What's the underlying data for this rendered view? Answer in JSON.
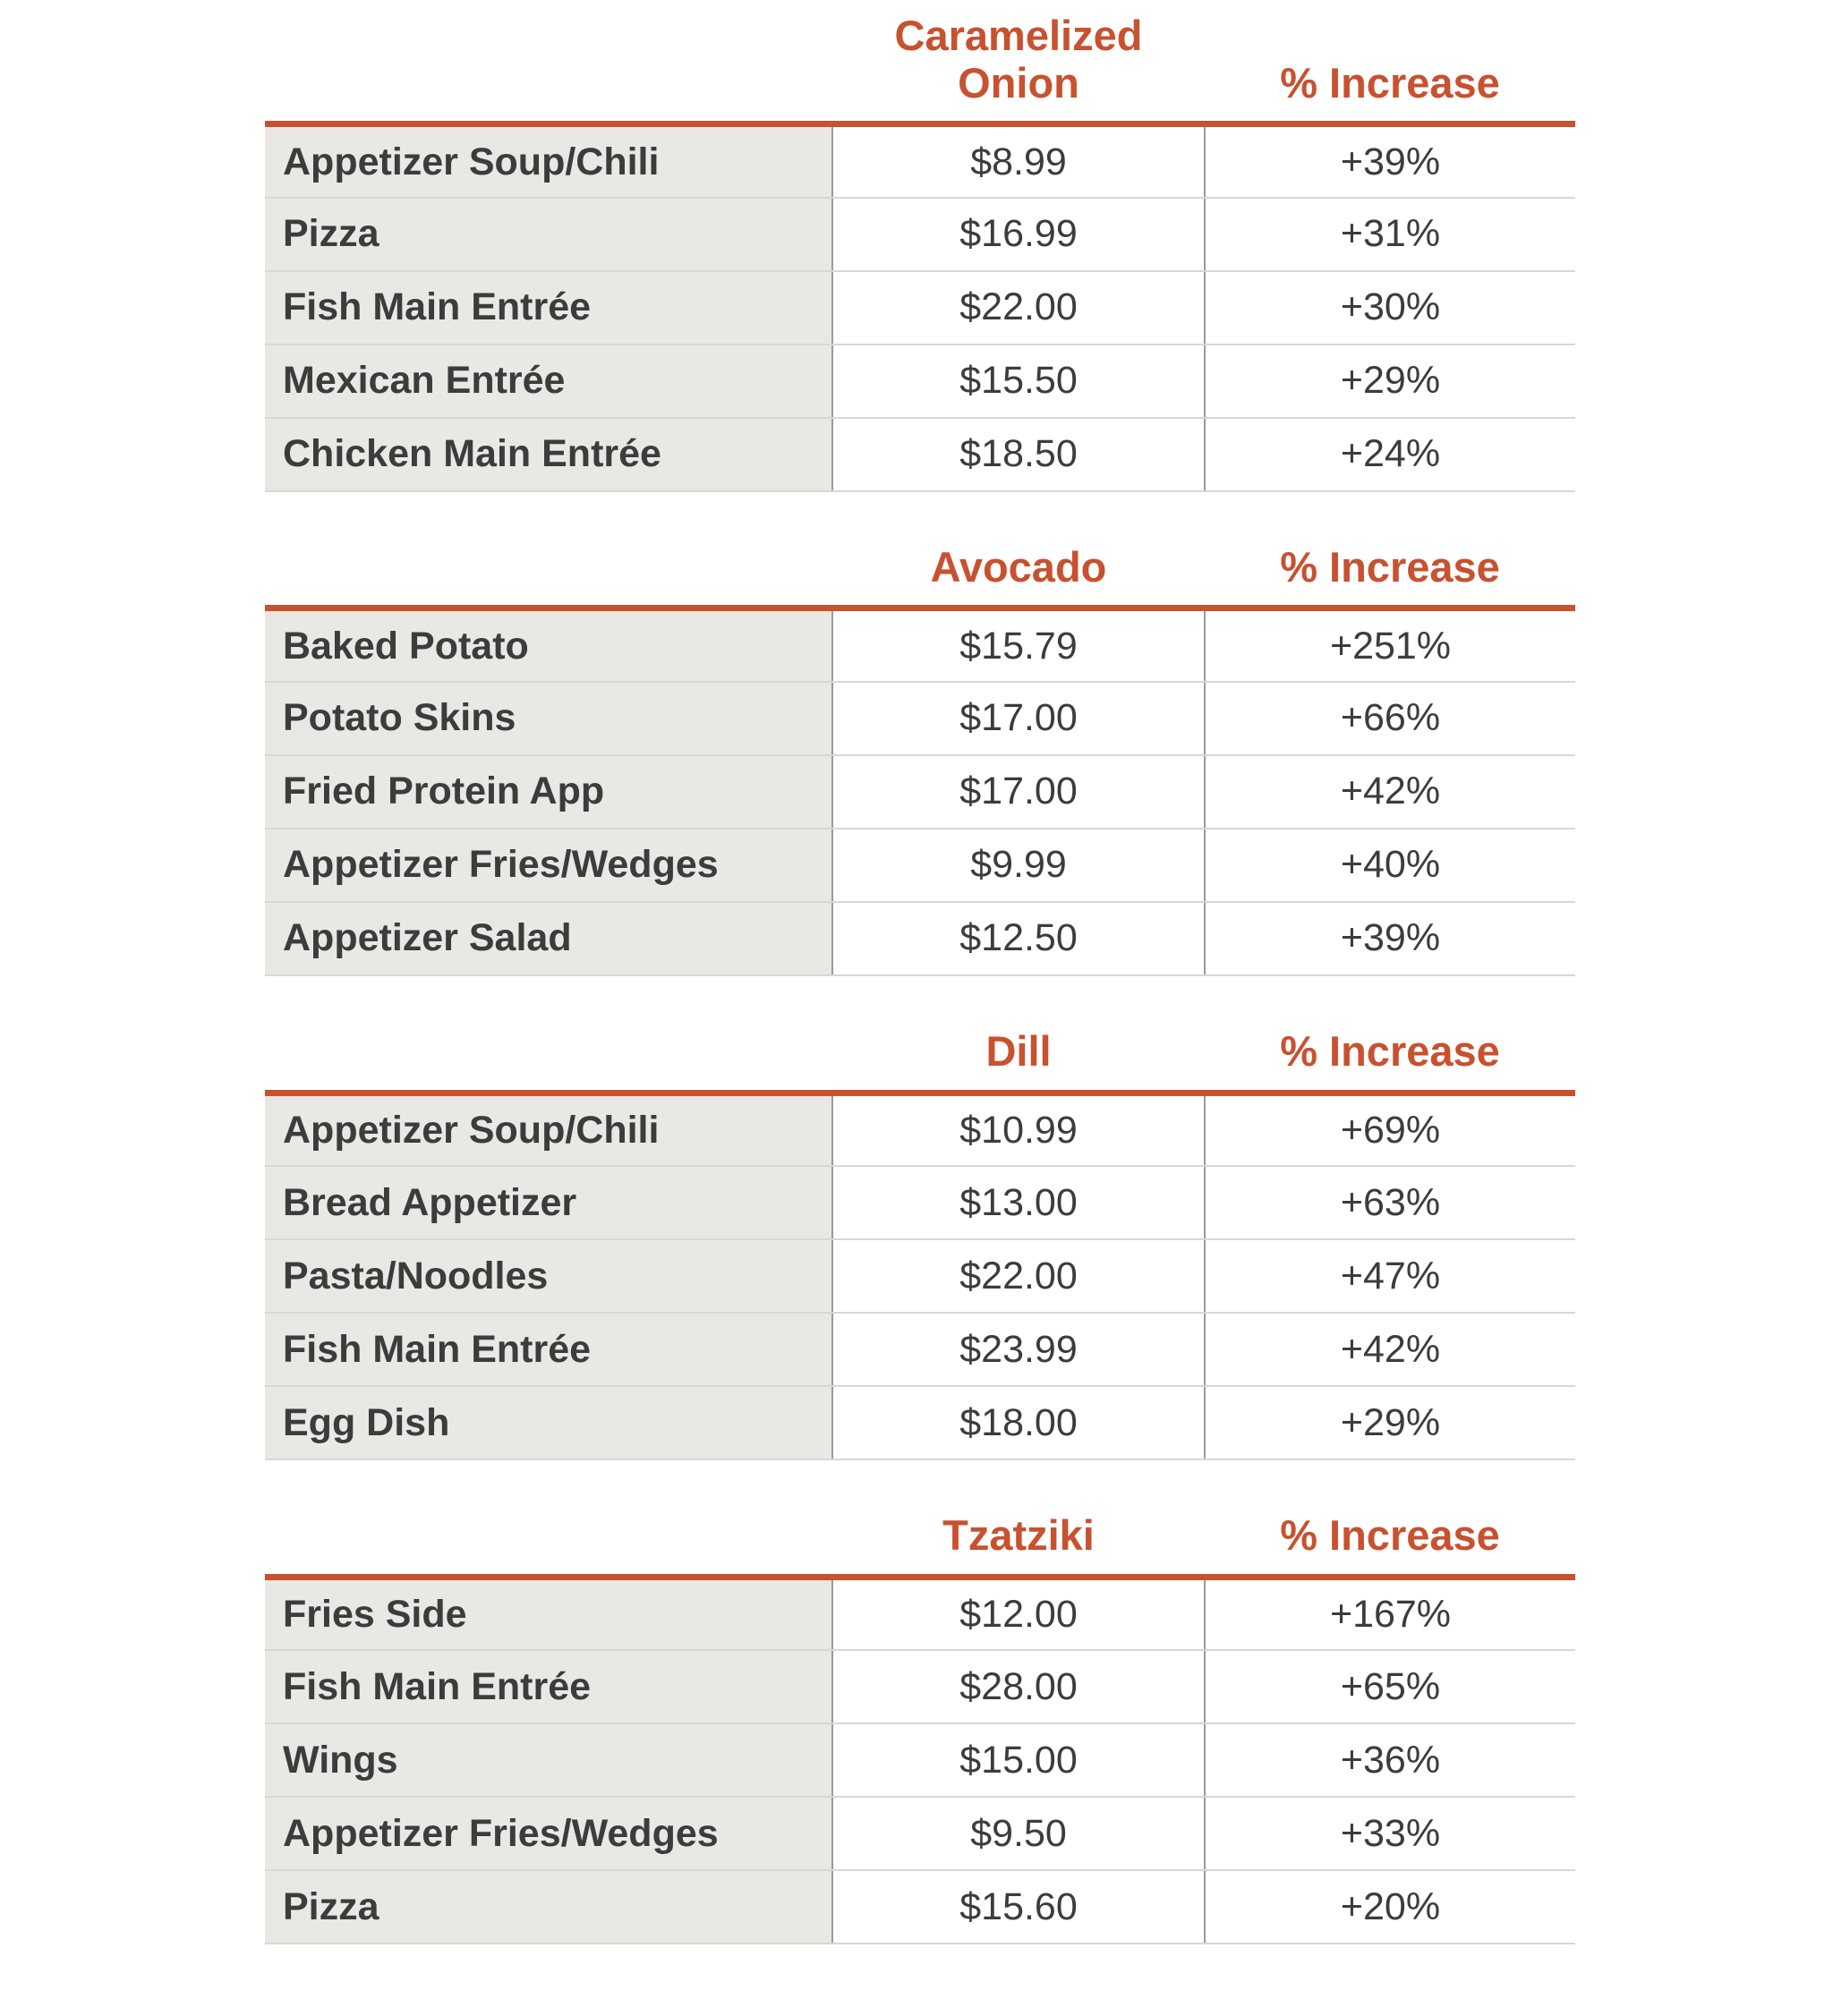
{
  "colors": {
    "accent": "#c8512f",
    "item_row_background": "#e9e8e5",
    "text": "#3c3c3c",
    "row_divider": "#d9d7d3",
    "column_divider": "#9b9b9b"
  },
  "tables": [
    {
      "title": "Caramelized Onion",
      "increase_label": "% Increase",
      "rows": [
        {
          "item": "Appetizer Soup/Chili",
          "price": "$8.99",
          "increase": "+39%"
        },
        {
          "item": "Pizza",
          "price": "$16.99",
          "increase": "+31%"
        },
        {
          "item": "Fish Main Entrée",
          "price": "$22.00",
          "increase": "+30%"
        },
        {
          "item": "Mexican Entrée",
          "price": "$15.50",
          "increase": "+29%"
        },
        {
          "item": "Chicken Main Entrée",
          "price": "$18.50",
          "increase": "+24%"
        }
      ]
    },
    {
      "title": "Avocado",
      "increase_label": "% Increase",
      "rows": [
        {
          "item": "Baked Potato",
          "price": "$15.79",
          "increase": "+251%"
        },
        {
          "item": "Potato Skins",
          "price": "$17.00",
          "increase": "+66%"
        },
        {
          "item": "Fried Protein App",
          "price": "$17.00",
          "increase": "+42%"
        },
        {
          "item": "Appetizer Fries/Wedges",
          "price": "$9.99",
          "increase": "+40%"
        },
        {
          "item": "Appetizer Salad",
          "price": "$12.50",
          "increase": "+39%"
        }
      ]
    },
    {
      "title": "Dill",
      "increase_label": "% Increase",
      "rows": [
        {
          "item": "Appetizer Soup/Chili",
          "price": "$10.99",
          "increase": "+69%"
        },
        {
          "item": "Bread Appetizer",
          "price": "$13.00",
          "increase": "+63%"
        },
        {
          "item": "Pasta/Noodles",
          "price": "$22.00",
          "increase": "+47%"
        },
        {
          "item": "Fish Main Entrée",
          "price": "$23.99",
          "increase": "+42%"
        },
        {
          "item": "Egg Dish",
          "price": "$18.00",
          "increase": "+29%"
        }
      ]
    },
    {
      "title": "Tzatziki",
      "increase_label": "% Increase",
      "rows": [
        {
          "item": "Fries Side",
          "price": "$12.00",
          "increase": "+167%"
        },
        {
          "item": "Fish Main Entrée",
          "price": "$28.00",
          "increase": "+65%"
        },
        {
          "item": "Wings",
          "price": "$15.00",
          "increase": "+36%"
        },
        {
          "item": "Appetizer Fries/Wedges",
          "price": "$9.50",
          "increase": "+33%"
        },
        {
          "item": "Pizza",
          "price": "$15.60",
          "increase": "+20%"
        }
      ]
    }
  ],
  "chart_data": [
    {
      "type": "table",
      "title": "Caramelized Onion",
      "price_header": "Caramelized Onion",
      "increase_header": "% Increase",
      "rows": [
        {
          "item": "Appetizer Soup/Chili",
          "price_usd": 8.99,
          "increase_pct": 39
        },
        {
          "item": "Pizza",
          "price_usd": 16.99,
          "increase_pct": 31
        },
        {
          "item": "Fish Main Entrée",
          "price_usd": 22.0,
          "increase_pct": 30
        },
        {
          "item": "Mexican Entrée",
          "price_usd": 15.5,
          "increase_pct": 29
        },
        {
          "item": "Chicken Main Entrée",
          "price_usd": 18.5,
          "increase_pct": 24
        }
      ]
    },
    {
      "type": "table",
      "title": "Avocado",
      "price_header": "Avocado",
      "increase_header": "% Increase",
      "rows": [
        {
          "item": "Baked Potato",
          "price_usd": 15.79,
          "increase_pct": 251
        },
        {
          "item": "Potato Skins",
          "price_usd": 17.0,
          "increase_pct": 66
        },
        {
          "item": "Fried Protein App",
          "price_usd": 17.0,
          "increase_pct": 42
        },
        {
          "item": "Appetizer Fries/Wedges",
          "price_usd": 9.99,
          "increase_pct": 40
        },
        {
          "item": "Appetizer Salad",
          "price_usd": 12.5,
          "increase_pct": 39
        }
      ]
    },
    {
      "type": "table",
      "title": "Dill",
      "price_header": "Dill",
      "increase_header": "% Increase",
      "rows": [
        {
          "item": "Appetizer Soup/Chili",
          "price_usd": 10.99,
          "increase_pct": 69
        },
        {
          "item": "Bread Appetizer",
          "price_usd": 13.0,
          "increase_pct": 63
        },
        {
          "item": "Pasta/Noodles",
          "price_usd": 22.0,
          "increase_pct": 47
        },
        {
          "item": "Fish Main Entrée",
          "price_usd": 23.99,
          "increase_pct": 42
        },
        {
          "item": "Egg Dish",
          "price_usd": 18.0,
          "increase_pct": 29
        }
      ]
    },
    {
      "type": "table",
      "title": "Tzatziki",
      "price_header": "Tzatziki",
      "increase_header": "% Increase",
      "rows": [
        {
          "item": "Fries Side",
          "price_usd": 12.0,
          "increase_pct": 167
        },
        {
          "item": "Fish Main Entrée",
          "price_usd": 28.0,
          "increase_pct": 65
        },
        {
          "item": "Wings",
          "price_usd": 15.0,
          "increase_pct": 36
        },
        {
          "item": "Appetizer Fries/Wedges",
          "price_usd": 9.5,
          "increase_pct": 33
        },
        {
          "item": "Pizza",
          "price_usd": 15.6,
          "increase_pct": 20
        }
      ]
    }
  ]
}
